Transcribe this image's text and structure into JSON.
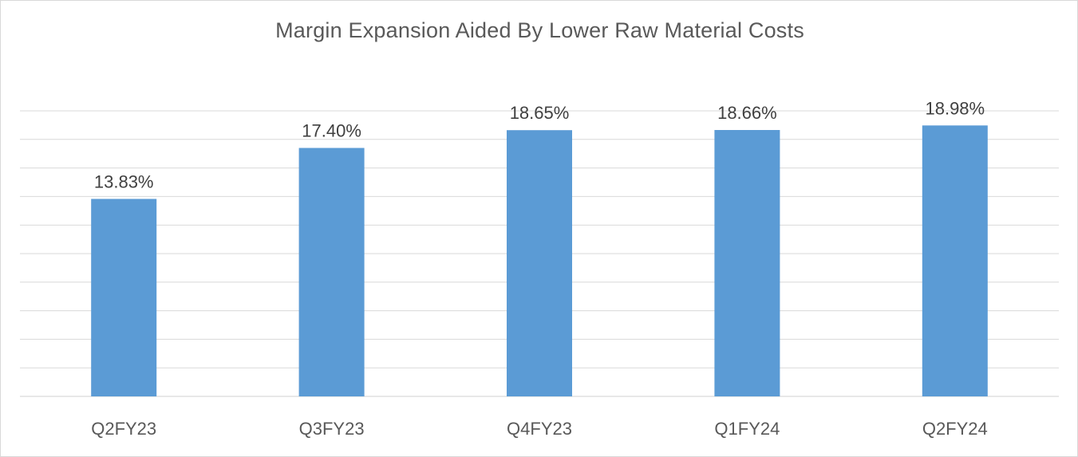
{
  "chart_data": {
    "type": "bar",
    "title": "Margin Expansion Aided By Lower Raw Material Costs",
    "categories": [
      "Q2FY23",
      "Q3FY23",
      "Q4FY23",
      "Q1FY24",
      "Q2FY24"
    ],
    "values": [
      13.83,
      17.4,
      18.65,
      18.66,
      18.98
    ],
    "data_labels": [
      "13.83%",
      "17.40%",
      "18.65%",
      "18.66%",
      "18.98%"
    ],
    "xlabel": "",
    "ylabel": "",
    "ylim": [
      0,
      20
    ],
    "grid": true,
    "legend": "none",
    "bar_color": "#5b9bd5"
  }
}
